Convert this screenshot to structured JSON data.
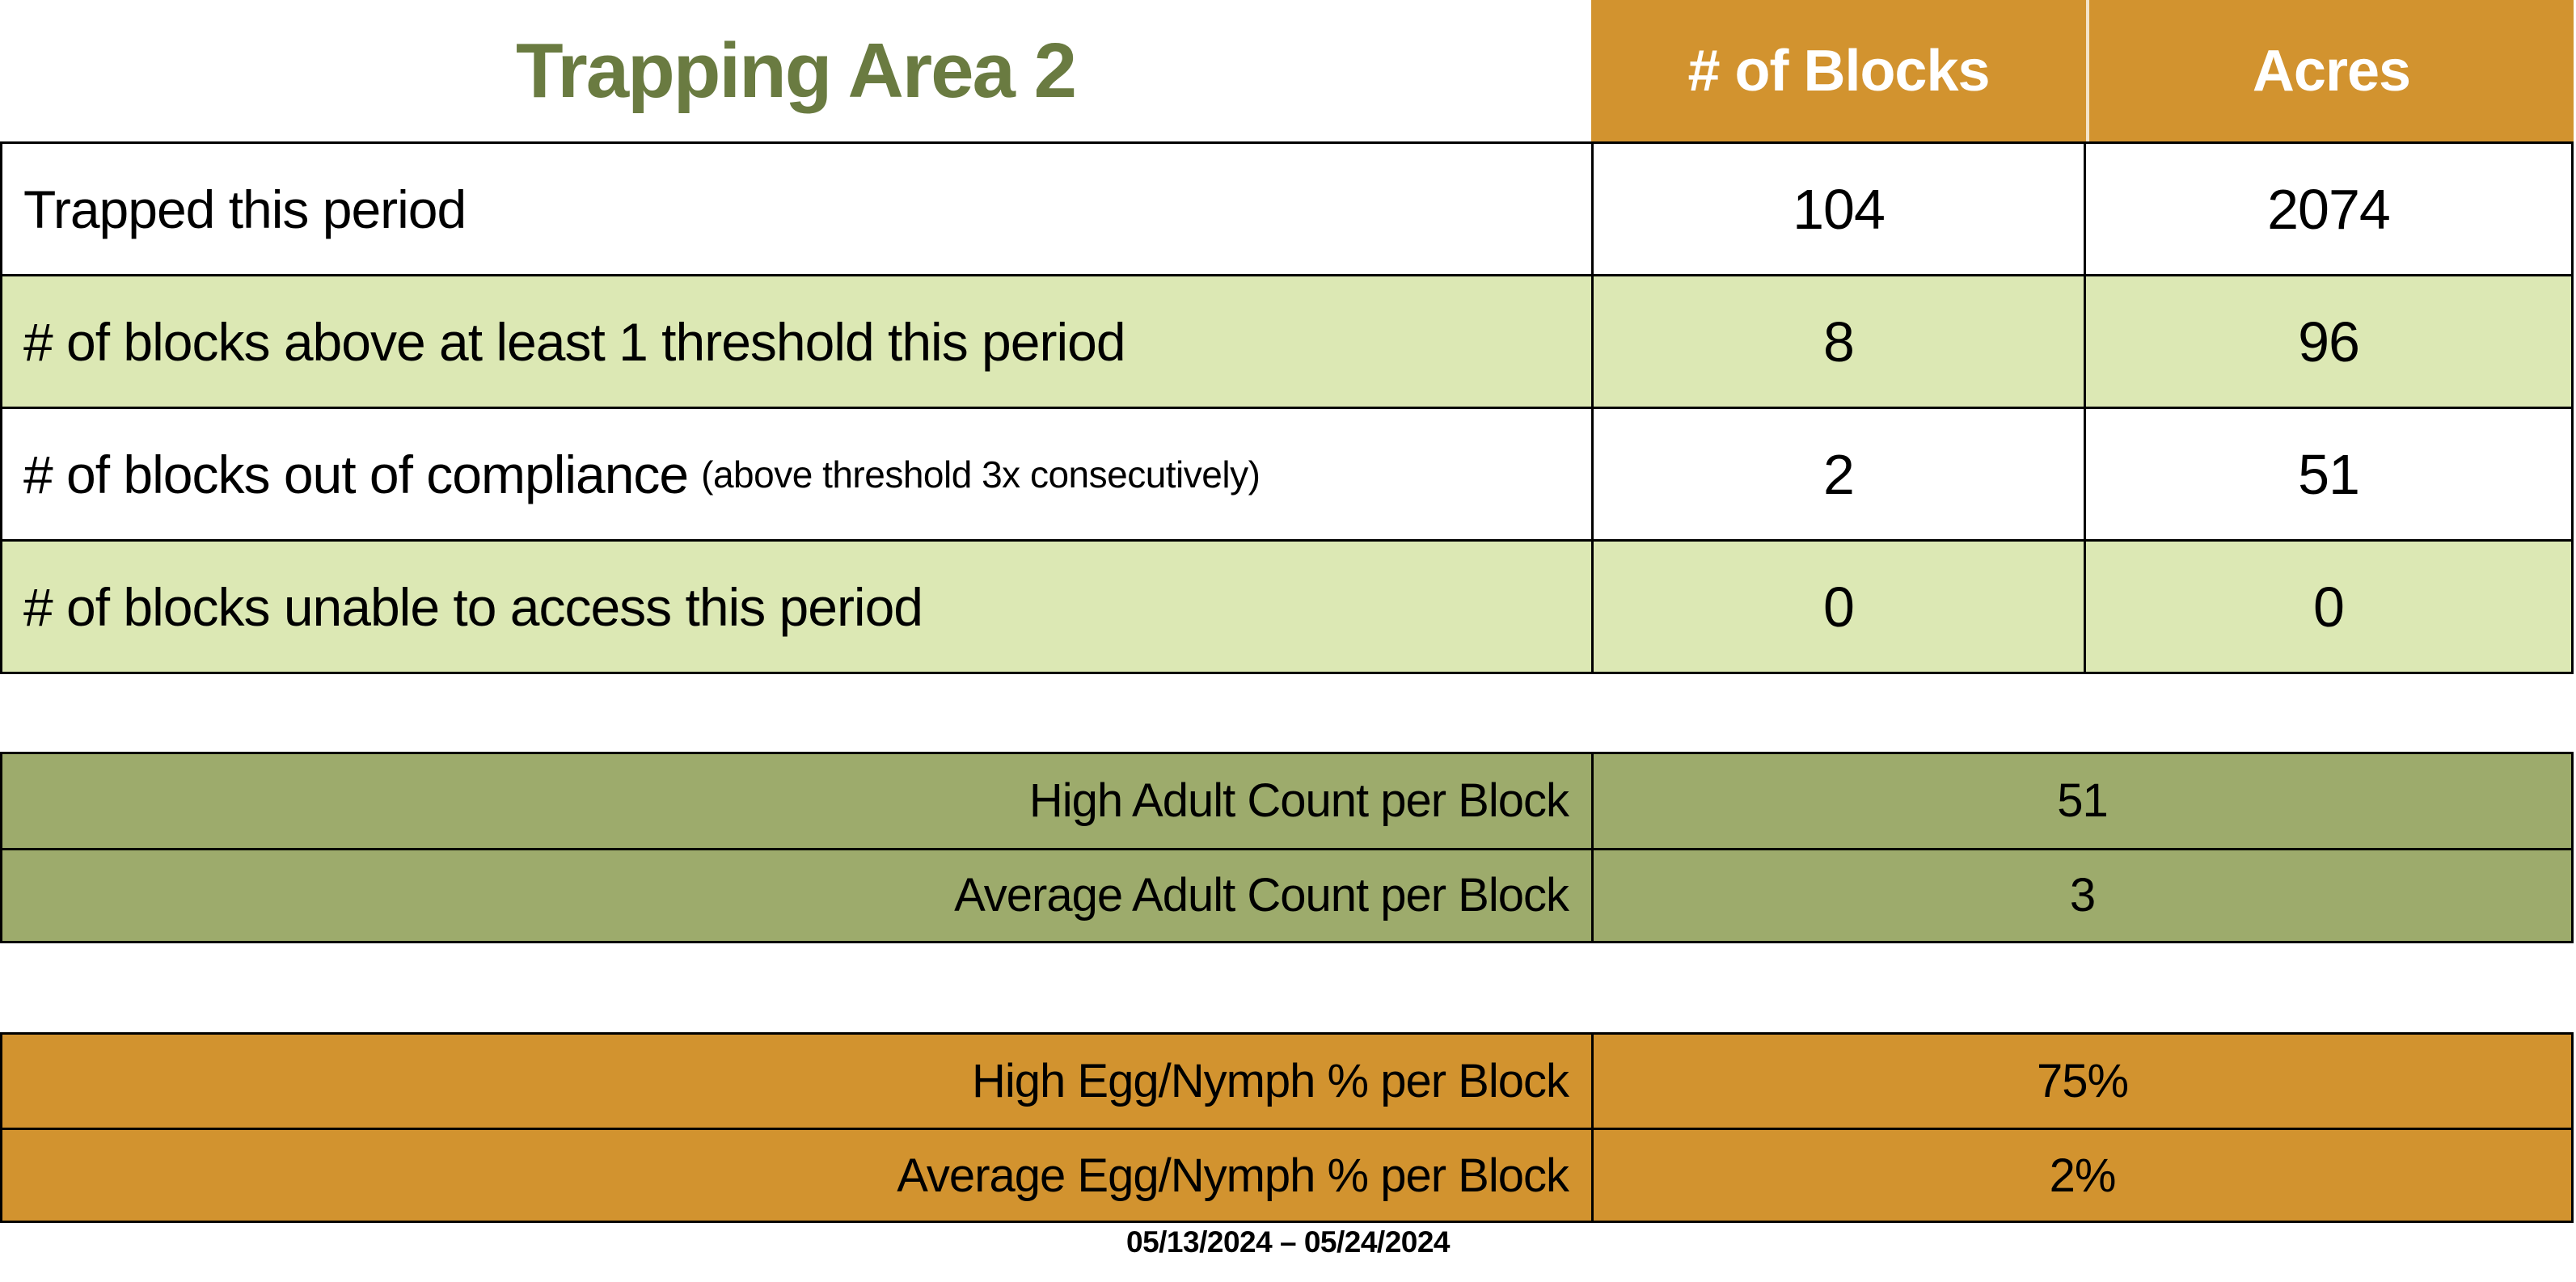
{
  "title": "Trapping Area 2",
  "summary_table": {
    "columns": {
      "blocks": "# of Blocks",
      "acres": "Acres"
    },
    "rows": [
      {
        "label": "Trapped this period",
        "note": "",
        "blocks": "104",
        "acres": "2074"
      },
      {
        "label": "# of blocks above at least 1 threshold this period",
        "note": "",
        "blocks": "8",
        "acres": "96"
      },
      {
        "label": "# of blocks out of compliance",
        "note": "(above threshold 3x consecutively)",
        "blocks": "2",
        "acres": "51"
      },
      {
        "label": "# of blocks unable to access this period",
        "note": "",
        "blocks": "0",
        "acres": "0"
      }
    ]
  },
  "adult_table": {
    "rows": [
      {
        "label": "High Adult Count per Block",
        "value": "51"
      },
      {
        "label": "Average Adult Count per Block",
        "value": "3"
      }
    ]
  },
  "egg_table": {
    "rows": [
      {
        "label": "High Egg/Nymph % per Block",
        "value": "75%"
      },
      {
        "label": "Average Egg/Nymph % per Block",
        "value": "2%"
      }
    ]
  },
  "date_range": "05/13/2024 – 05/24/2024",
  "colors": {
    "header_orange": "#D2932F",
    "row_light_green": "#DCE8B4",
    "adult_olive": "#9DAB6C",
    "title_green": "#6A7B41",
    "border_black": "#000000",
    "header_text_white": "#FFFFFF"
  }
}
